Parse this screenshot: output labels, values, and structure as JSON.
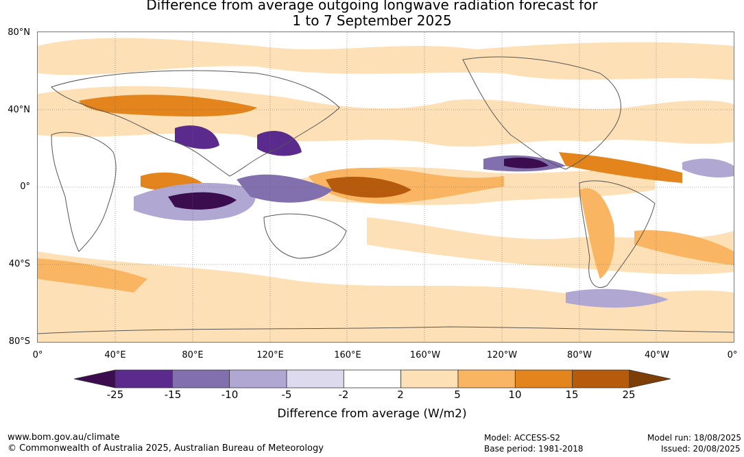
{
  "title_line1": "Difference from average outgoing longwave radiation forecast for",
  "title_line2": "1 to 7 September 2025",
  "lat_labels": [
    "80°N",
    "40°N",
    "0°",
    "40°S",
    "80°S"
  ],
  "lon_labels": [
    "0°",
    "40°E",
    "80°E",
    "120°E",
    "160°E",
    "160°W",
    "120°W",
    "80°W",
    "40°W",
    "0°"
  ],
  "colorbar": {
    "title": "Difference from average (W/m2)",
    "ticks": [
      "-25",
      "-15",
      "-10",
      "-5",
      "-2",
      "2",
      "5",
      "10",
      "15",
      "25"
    ],
    "colors": [
      "#3b0d4f",
      "#5a2b8c",
      "#8170ad",
      "#b0a8d3",
      "#dcdaec",
      "#ffffff",
      "#fde0b5",
      "#f9b561",
      "#e3851c",
      "#b65a0c",
      "#7d3e08"
    ]
  },
  "footer": {
    "website": "www.bom.gov.au/climate",
    "copyright": "© Commonwealth of Australia 2025, Australian Bureau of Meteorology",
    "model": "Model: ACCESS-S2",
    "base_period": "Base period: 1981-2018",
    "model_run": "Model run: 18/08/2025",
    "issued": "Issued: 20/08/2025"
  }
}
